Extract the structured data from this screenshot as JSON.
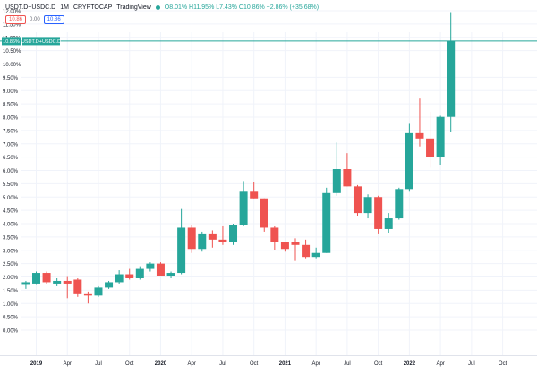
{
  "header": {
    "symbol": "USDT.D+USDC.D",
    "interval": "1M",
    "source": "CRYPTOCAP",
    "platform": "TradingView",
    "ohlc": "O8.01% H11.95% L7.43% C10.86% +2.86% (+35.68%)",
    "indicator_left": "10.86",
    "indicator_mid": "0.00",
    "indicator_right": "10.86"
  },
  "colors": {
    "up": "#26a69a",
    "down": "#ef5350",
    "grid": "#f0f3fa",
    "axis_text": "#131722",
    "price_line": "#26a69a"
  },
  "chart_data": {
    "type": "candlestick",
    "interval": "monthly",
    "y_ticks": [
      "0.00%",
      "0.50%",
      "1.00%",
      "1.50%",
      "2.00%",
      "2.50%",
      "3.00%",
      "3.50%",
      "4.00%",
      "4.50%",
      "5.00%",
      "5.50%",
      "6.00%",
      "6.50%",
      "7.00%",
      "7.50%",
      "8.00%",
      "8.50%",
      "9.00%",
      "9.50%",
      "10.00%",
      "10.50%",
      "11.00%",
      "11.50%",
      "12.00%"
    ],
    "x_ticks": [
      "2019",
      "Apr",
      "Jul",
      "Oct",
      "2020",
      "Apr",
      "Jul",
      "Oct",
      "2021",
      "Apr",
      "Jul",
      "Oct",
      "2022",
      "Apr",
      "Jul",
      "Oct"
    ],
    "ylim": [
      0,
      12.3
    ],
    "last_price_label": "10.86%",
    "last_price_symbol": "USDT.D+USDC.D",
    "last_price": 10.86,
    "candles": [
      {
        "date": "2018-12",
        "o": 1.7,
        "h": 1.85,
        "l": 1.55,
        "c": 1.8
      },
      {
        "date": "2019-01",
        "o": 1.75,
        "h": 2.2,
        "l": 1.7,
        "c": 2.15
      },
      {
        "date": "2019-02",
        "o": 2.15,
        "h": 2.2,
        "l": 1.75,
        "c": 1.8
      },
      {
        "date": "2019-03",
        "o": 1.75,
        "h": 1.95,
        "l": 1.65,
        "c": 1.85
      },
      {
        "date": "2019-04",
        "o": 1.85,
        "h": 2.0,
        "l": 1.2,
        "c": 1.75
      },
      {
        "date": "2019-05",
        "o": 1.9,
        "h": 1.95,
        "l": 1.25,
        "c": 1.35
      },
      {
        "date": "2019-06",
        "o": 1.35,
        "h": 1.45,
        "l": 1.0,
        "c": 1.3
      },
      {
        "date": "2019-07",
        "o": 1.3,
        "h": 1.65,
        "l": 1.25,
        "c": 1.6
      },
      {
        "date": "2019-08",
        "o": 1.6,
        "h": 1.85,
        "l": 1.55,
        "c": 1.8
      },
      {
        "date": "2019-09",
        "o": 1.8,
        "h": 2.25,
        "l": 1.75,
        "c": 2.1
      },
      {
        "date": "2019-10",
        "o": 2.1,
        "h": 2.3,
        "l": 1.9,
        "c": 1.95
      },
      {
        "date": "2019-11",
        "o": 1.95,
        "h": 2.4,
        "l": 1.9,
        "c": 2.3
      },
      {
        "date": "2019-12",
        "o": 2.3,
        "h": 2.55,
        "l": 2.2,
        "c": 2.5
      },
      {
        "date": "2020-01",
        "o": 2.5,
        "h": 2.55,
        "l": 2.05,
        "c": 2.05
      },
      {
        "date": "2020-02",
        "o": 2.05,
        "h": 2.2,
        "l": 1.95,
        "c": 2.15
      },
      {
        "date": "2020-03",
        "o": 2.15,
        "h": 4.55,
        "l": 2.1,
        "c": 3.85
      },
      {
        "date": "2020-04",
        "o": 3.85,
        "h": 3.95,
        "l": 2.9,
        "c": 3.05
      },
      {
        "date": "2020-05",
        "o": 3.05,
        "h": 3.7,
        "l": 2.95,
        "c": 3.6
      },
      {
        "date": "2020-06",
        "o": 3.6,
        "h": 3.75,
        "l": 3.1,
        "c": 3.4
      },
      {
        "date": "2020-07",
        "o": 3.4,
        "h": 3.9,
        "l": 3.2,
        "c": 3.3
      },
      {
        "date": "2020-08",
        "o": 3.3,
        "h": 4.0,
        "l": 3.2,
        "c": 3.95
      },
      {
        "date": "2020-09",
        "o": 3.95,
        "h": 5.6,
        "l": 3.9,
        "c": 5.2
      },
      {
        "date": "2020-10",
        "o": 5.2,
        "h": 5.55,
        "l": 4.95,
        "c": 4.95
      },
      {
        "date": "2020-11",
        "o": 4.95,
        "h": 4.95,
        "l": 3.7,
        "c": 3.85
      },
      {
        "date": "2020-12",
        "o": 3.85,
        "h": 3.9,
        "l": 3.0,
        "c": 3.3
      },
      {
        "date": "2021-01",
        "o": 3.3,
        "h": 3.3,
        "l": 2.95,
        "c": 3.05
      },
      {
        "date": "2021-02",
        "o": 3.3,
        "h": 3.45,
        "l": 2.6,
        "c": 3.2
      },
      {
        "date": "2021-03",
        "o": 3.2,
        "h": 3.4,
        "l": 2.7,
        "c": 2.75
      },
      {
        "date": "2021-04",
        "o": 2.75,
        "h": 3.1,
        "l": 2.7,
        "c": 2.9
      },
      {
        "date": "2021-05",
        "o": 2.9,
        "h": 5.35,
        "l": 2.9,
        "c": 5.15
      },
      {
        "date": "2021-06",
        "o": 5.15,
        "h": 7.05,
        "l": 5.05,
        "c": 6.05
      },
      {
        "date": "2021-07",
        "o": 6.05,
        "h": 6.65,
        "l": 5.4,
        "c": 5.4
      },
      {
        "date": "2021-08",
        "o": 5.4,
        "h": 5.45,
        "l": 4.3,
        "c": 4.4
      },
      {
        "date": "2021-09",
        "o": 4.4,
        "h": 5.1,
        "l": 4.2,
        "c": 5.0
      },
      {
        "date": "2021-10",
        "o": 5.0,
        "h": 5.05,
        "l": 3.6,
        "c": 3.8
      },
      {
        "date": "2021-11",
        "o": 3.8,
        "h": 4.4,
        "l": 3.65,
        "c": 4.2
      },
      {
        "date": "2021-12",
        "o": 4.2,
        "h": 5.35,
        "l": 4.15,
        "c": 5.3
      },
      {
        "date": "2022-01",
        "o": 5.3,
        "h": 7.75,
        "l": 5.2,
        "c": 7.4
      },
      {
        "date": "2022-02",
        "o": 7.4,
        "h": 8.7,
        "l": 6.9,
        "c": 7.2
      },
      {
        "date": "2022-03",
        "o": 7.2,
        "h": 8.2,
        "l": 6.1,
        "c": 6.5
      },
      {
        "date": "2022-04",
        "o": 6.5,
        "h": 8.05,
        "l": 6.2,
        "c": 8.01
      },
      {
        "date": "2022-05",
        "o": 8.01,
        "h": 11.95,
        "l": 7.43,
        "c": 10.86
      }
    ]
  }
}
